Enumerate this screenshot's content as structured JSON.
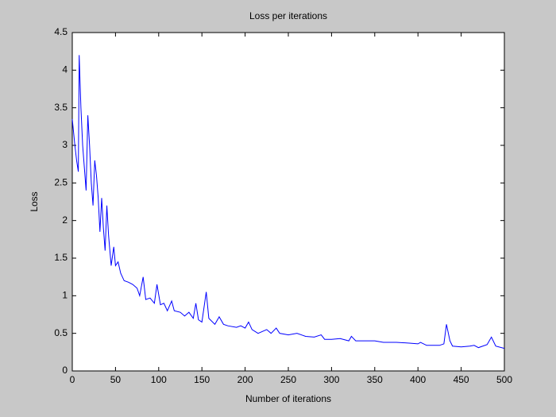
{
  "chart_data": {
    "type": "line",
    "title": "Loss per iterations",
    "x_label": "Number of iterations",
    "y_label": "Loss",
    "xlim": [
      0,
      500
    ],
    "xticks": [
      0,
      50,
      100,
      150,
      200,
      250,
      300,
      350,
      400,
      450,
      500
    ],
    "ylim": [
      0,
      4.5
    ],
    "yticks": [
      0,
      0.5,
      1,
      1.5,
      2,
      2.5,
      3,
      3.5,
      4,
      4.5
    ],
    "grid": false,
    "series": [
      {
        "color": "#0000ff",
        "x": [
          0,
          3,
          5,
          7,
          8,
          10,
          12,
          14,
          16,
          18,
          20,
          22,
          24,
          26,
          28,
          30,
          32,
          34,
          36,
          38,
          40,
          42,
          45,
          48,
          50,
          53,
          56,
          60,
          65,
          70,
          75,
          78,
          82,
          85,
          90,
          95,
          98,
          102,
          106,
          110,
          115,
          118,
          125,
          130,
          135,
          140,
          143,
          146,
          150,
          155,
          158,
          165,
          170,
          175,
          180,
          190,
          195,
          200,
          204,
          208,
          215,
          225,
          230,
          236,
          240,
          250,
          260,
          270,
          280,
          288,
          292,
          300,
          310,
          320,
          323,
          328,
          340,
          350,
          360,
          375,
          390,
          400,
          403,
          410,
          425,
          430,
          433,
          437,
          440,
          450,
          460,
          465,
          470,
          480,
          485,
          490,
          500
        ],
        "values": [
          3.35,
          3.0,
          2.8,
          2.65,
          4.2,
          3.5,
          3.0,
          2.7,
          2.4,
          3.4,
          3.0,
          2.5,
          2.2,
          2.8,
          2.6,
          2.3,
          1.85,
          2.3,
          1.9,
          1.6,
          2.2,
          1.8,
          1.4,
          1.65,
          1.4,
          1.45,
          1.3,
          1.2,
          1.18,
          1.15,
          1.1,
          1.0,
          1.25,
          0.95,
          0.97,
          0.9,
          1.15,
          0.88,
          0.9,
          0.8,
          0.93,
          0.8,
          0.78,
          0.73,
          0.78,
          0.7,
          0.9,
          0.68,
          0.65,
          1.05,
          0.7,
          0.62,
          0.72,
          0.62,
          0.6,
          0.58,
          0.6,
          0.57,
          0.65,
          0.55,
          0.5,
          0.55,
          0.5,
          0.57,
          0.5,
          0.48,
          0.5,
          0.46,
          0.45,
          0.48,
          0.42,
          0.42,
          0.43,
          0.4,
          0.46,
          0.4,
          0.4,
          0.4,
          0.38,
          0.38,
          0.37,
          0.36,
          0.38,
          0.34,
          0.34,
          0.36,
          0.62,
          0.4,
          0.33,
          0.32,
          0.33,
          0.34,
          0.31,
          0.35,
          0.45,
          0.33,
          0.3
        ]
      }
    ]
  }
}
